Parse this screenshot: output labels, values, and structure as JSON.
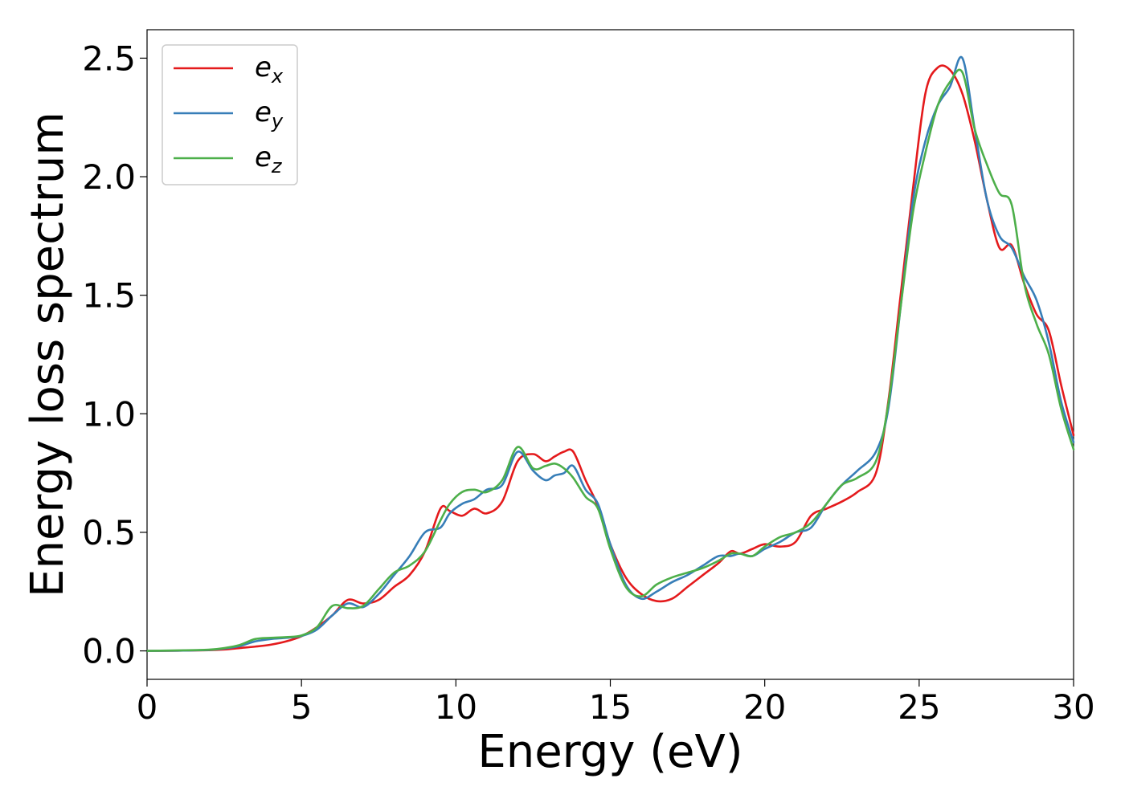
{
  "chart_data": {
    "type": "line",
    "title": "",
    "xlabel": "Energy (eV)",
    "ylabel": "Energy loss spectrum",
    "xlim": [
      0,
      30
    ],
    "ylim": [
      -0.12,
      2.62
    ],
    "xticks": [
      0,
      5,
      10,
      15,
      20,
      25,
      30
    ],
    "xtick_labels": [
      "0",
      "5",
      "10",
      "15",
      "20",
      "25",
      "30"
    ],
    "yticks": [
      0.0,
      0.5,
      1.0,
      1.5,
      2.0,
      2.5
    ],
    "ytick_labels": [
      "0.0",
      "0.5",
      "1.0",
      "1.5",
      "2.0",
      "2.5"
    ],
    "grid": false,
    "legend_position": "top-left",
    "series": [
      {
        "name": "e",
        "name_sub": "x",
        "color": "#e41a1c",
        "x": [
          0,
          1,
          2,
          2.5,
          3,
          3.5,
          4,
          4.5,
          5,
          5.5,
          6,
          6.5,
          7,
          7.5,
          8,
          8.5,
          9,
          9.5,
          9.8,
          10.2,
          10.6,
          11,
          11.5,
          12,
          12.5,
          12.9,
          13.2,
          13.5,
          13.8,
          14.2,
          14.6,
          15,
          15.5,
          16,
          16.5,
          17,
          17.5,
          18,
          18.5,
          18.9,
          19.2,
          19.6,
          20,
          20.5,
          21,
          21.5,
          22,
          22.5,
          23,
          23.6,
          24,
          24.4,
          24.8,
          25.2,
          25.6,
          26,
          26.4,
          26.8,
          27.2,
          27.6,
          28,
          28.4,
          28.8,
          29.2,
          29.6,
          30
        ],
        "values": [
          0.0,
          0.001,
          0.003,
          0.006,
          0.012,
          0.018,
          0.026,
          0.04,
          0.062,
          0.1,
          0.15,
          0.215,
          0.2,
          0.215,
          0.27,
          0.32,
          0.42,
          0.6,
          0.59,
          0.57,
          0.6,
          0.58,
          0.63,
          0.8,
          0.83,
          0.8,
          0.82,
          0.84,
          0.84,
          0.72,
          0.61,
          0.45,
          0.31,
          0.24,
          0.21,
          0.22,
          0.27,
          0.32,
          0.37,
          0.42,
          0.41,
          0.43,
          0.45,
          0.44,
          0.46,
          0.57,
          0.6,
          0.63,
          0.67,
          0.75,
          1.05,
          1.5,
          1.95,
          2.35,
          2.46,
          2.45,
          2.35,
          2.15,
          1.9,
          1.7,
          1.71,
          1.55,
          1.42,
          1.35,
          1.12,
          0.91
        ]
      },
      {
        "name": "e",
        "name_sub": "y",
        "color": "#377eb8",
        "x": [
          0,
          1,
          2,
          2.5,
          3,
          3.5,
          4,
          4.5,
          5,
          5.5,
          6,
          6.5,
          7,
          7.5,
          8,
          8.5,
          9,
          9.5,
          9.8,
          10.2,
          10.6,
          11,
          11.5,
          12,
          12.5,
          12.9,
          13.2,
          13.5,
          13.8,
          14.2,
          14.6,
          15,
          15.5,
          16,
          16.5,
          17,
          17.5,
          18,
          18.5,
          18.9,
          19.2,
          19.6,
          20,
          20.5,
          21,
          21.5,
          22,
          22.5,
          23,
          23.6,
          24,
          24.4,
          24.8,
          25.2,
          25.6,
          26,
          26.4,
          26.8,
          27.2,
          27.6,
          28,
          28.4,
          28.8,
          29.2,
          29.6,
          30
        ],
        "values": [
          0.0,
          0.001,
          0.004,
          0.01,
          0.02,
          0.04,
          0.05,
          0.055,
          0.063,
          0.09,
          0.15,
          0.2,
          0.185,
          0.24,
          0.32,
          0.4,
          0.5,
          0.52,
          0.58,
          0.62,
          0.64,
          0.68,
          0.7,
          0.84,
          0.76,
          0.72,
          0.74,
          0.75,
          0.78,
          0.68,
          0.62,
          0.45,
          0.28,
          0.22,
          0.25,
          0.29,
          0.32,
          0.36,
          0.4,
          0.4,
          0.41,
          0.4,
          0.43,
          0.46,
          0.5,
          0.52,
          0.62,
          0.7,
          0.76,
          0.84,
          1.02,
          1.45,
          1.9,
          2.15,
          2.3,
          2.38,
          2.5,
          2.2,
          1.9,
          1.75,
          1.7,
          1.58,
          1.48,
          1.3,
          1.05,
          0.88
        ]
      },
      {
        "name": "e",
        "name_sub": "z",
        "color": "#4daf4a",
        "x": [
          0,
          1,
          2,
          2.5,
          3,
          3.5,
          4,
          4.5,
          5,
          5.5,
          6,
          6.5,
          7,
          7.5,
          8,
          8.5,
          9,
          9.5,
          9.8,
          10.2,
          10.6,
          11,
          11.5,
          12,
          12.5,
          12.9,
          13.2,
          13.5,
          13.8,
          14.2,
          14.6,
          15,
          15.5,
          16,
          16.5,
          17,
          17.5,
          18,
          18.5,
          18.9,
          19.2,
          19.6,
          20,
          20.5,
          21,
          21.5,
          22,
          22.5,
          23,
          23.6,
          24,
          24.4,
          24.8,
          25.2,
          25.6,
          26,
          26.4,
          26.8,
          27.2,
          27.6,
          28,
          28.4,
          28.8,
          29.2,
          29.6,
          30
        ],
        "values": [
          0.0,
          0.002,
          0.005,
          0.012,
          0.025,
          0.05,
          0.055,
          0.058,
          0.065,
          0.1,
          0.19,
          0.18,
          0.19,
          0.26,
          0.33,
          0.36,
          0.42,
          0.55,
          0.62,
          0.67,
          0.68,
          0.67,
          0.72,
          0.86,
          0.77,
          0.78,
          0.79,
          0.77,
          0.73,
          0.65,
          0.6,
          0.43,
          0.27,
          0.23,
          0.28,
          0.31,
          0.33,
          0.35,
          0.38,
          0.41,
          0.41,
          0.4,
          0.44,
          0.48,
          0.5,
          0.54,
          0.62,
          0.7,
          0.73,
          0.8,
          1.04,
          1.45,
          1.85,
          2.1,
          2.3,
          2.4,
          2.44,
          2.2,
          2.05,
          1.93,
          1.88,
          1.55,
          1.38,
          1.25,
          1.02,
          0.85
        ]
      }
    ]
  }
}
